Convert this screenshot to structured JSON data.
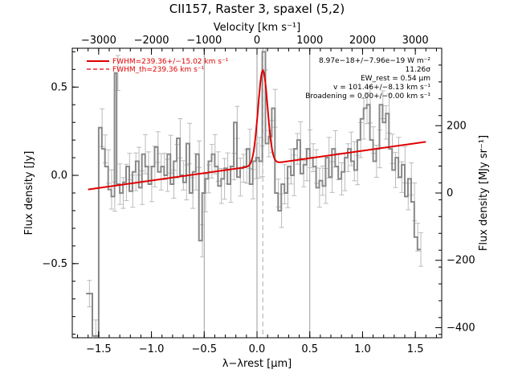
{
  "chart_data": {
    "type": "line",
    "title": "CII157, Raster 3, spaxel (5,2)",
    "xlabel": "λ−λrest [μm]",
    "ylabel": "Flux density [Jy]",
    "y2label": "Flux density [MJy sr⁻¹]",
    "top_xlabel": "Velocity [km s⁻¹]",
    "xlim": [
      -1.75,
      1.75
    ],
    "ylim": [
      -0.92,
      0.72
    ],
    "x_ticks": [
      -1.5,
      -1.0,
      -0.5,
      0.0,
      0.5,
      1.0,
      1.5
    ],
    "x_tick_labels": [
      "−1.5",
      "−1.0",
      "−0.5",
      "0.0",
      "0.5",
      "1.0",
      "1.5"
    ],
    "y_ticks": [
      -0.5,
      0.0,
      0.5
    ],
    "y_tick_labels": [
      "−0.5",
      "0.0",
      "0.5"
    ],
    "top_ticks_kms": [
      -3000,
      -2000,
      -1000,
      0,
      1000,
      2000,
      3000
    ],
    "top_tick_labels": [
      "−3000",
      "−2000",
      "−1000",
      "0",
      "1000",
      "2000",
      "3000"
    ],
    "right_ticks": [
      -400,
      -200,
      0,
      200
    ],
    "right_tick_labels": [
      "−400",
      "−200",
      "0",
      "200"
    ],
    "right_ylim": [
      -430,
      430
    ],
    "vlines_x": [
      -0.5,
      0.0,
      0.5
    ],
    "dashed_vline_x": 0.055,
    "spectrum": {
      "color": "#888888",
      "x": [
        -1.62,
        -1.56,
        -1.5,
        -1.47,
        -1.44,
        -1.41,
        -1.38,
        -1.35,
        -1.33,
        -1.3,
        -1.27,
        -1.24,
        -1.21,
        -1.18,
        -1.15,
        -1.12,
        -1.09,
        -1.06,
        -1.03,
        -1.0,
        -0.97,
        -0.94,
        -0.91,
        -0.88,
        -0.85,
        -0.82,
        -0.79,
        -0.76,
        -0.73,
        -0.7,
        -0.67,
        -0.64,
        -0.61,
        -0.58,
        -0.55,
        -0.52,
        -0.49,
        -0.46,
        -0.43,
        -0.4,
        -0.37,
        -0.34,
        -0.31,
        -0.28,
        -0.25,
        -0.22,
        -0.19,
        -0.16,
        -0.13,
        -0.1,
        -0.07,
        -0.04,
        -0.01,
        0.02,
        0.05,
        0.08,
        0.11,
        0.14,
        0.17,
        0.2,
        0.23,
        0.26,
        0.29,
        0.32,
        0.35,
        0.38,
        0.41,
        0.44,
        0.47,
        0.5,
        0.53,
        0.56,
        0.59,
        0.62,
        0.65,
        0.68,
        0.71,
        0.74,
        0.77,
        0.8,
        0.83,
        0.86,
        0.89,
        0.92,
        0.95,
        0.98,
        1.01,
        1.04,
        1.07,
        1.1,
        1.13,
        1.16,
        1.19,
        1.22,
        1.25,
        1.28,
        1.31,
        1.34,
        1.37,
        1.4,
        1.43,
        1.46,
        1.49,
        1.52
      ],
      "y": [
        -0.67,
        -0.91,
        0.27,
        0.15,
        0.05,
        -0.08,
        -0.12,
        0.58,
        -0.05,
        -0.1,
        -0.04,
        0.05,
        -0.09,
        0.02,
        0.08,
        -0.07,
        0.12,
        0.05,
        -0.05,
        0.05,
        0.16,
        0.02,
        0.05,
        0.0,
        0.12,
        -0.05,
        0.08,
        0.21,
        0.0,
        -0.04,
        0.18,
        -0.1,
        0.02,
        0.12,
        -0.37,
        -0.1,
        -0.02,
        0.08,
        0.12,
        0.05,
        -0.06,
        -0.02,
        0.04,
        -0.05,
        0.05,
        0.3,
        -0.01,
        0.04,
        0.05,
        0.15,
        -0.05,
        0.08,
        0.1,
        0.08,
        0.7,
        0.18,
        0.22,
        0.38,
        -0.1,
        -0.2,
        -0.05,
        -0.1,
        0.05,
        0.0,
        0.15,
        0.2,
        0.01,
        0.06,
        0.15,
        0.1,
        0.05,
        -0.07,
        -0.03,
        -0.06,
        0.1,
        -0.01,
        0.15,
        0.05,
        -0.02,
        0.02,
        0.1,
        0.15,
        0.08,
        0.03,
        0.2,
        0.32,
        0.38,
        0.4,
        0.2,
        0.08,
        0.15,
        0.4,
        0.3,
        0.35,
        0.15,
        0.03,
        0.1,
        -0.01,
        0.06,
        -0.12,
        -0.02,
        -0.15,
        -0.35,
        -0.42
      ]
    },
    "errorbar_color": "#bbbbbb",
    "errorbar_halfwidth": 0.065,
    "continuum": {
      "x_start": -1.6,
      "x_end": 1.6,
      "y_start": -0.08,
      "y_end": 0.19,
      "color": "#e00000"
    },
    "gauss_fit": {
      "center": 0.055,
      "amplitude": 0.535,
      "sigma": 0.045,
      "color": "#e00000"
    },
    "legend": [
      {
        "label": "FWHM=239.36+/−15.02 km s⁻¹",
        "style": "solid",
        "color": "#e00000"
      },
      {
        "label": "FWHM_th=239.36 km s⁻¹",
        "style": "dashed",
        "color": "#e00000"
      }
    ],
    "annotations": [
      "8.97e−18+/−7.96e−19 W m⁻²",
      "11.26σ",
      "EW_rest = 0.54 μm",
      "v = 101.46+/−8.13 km s⁻¹",
      "Broadening = 0.00+/−0.00 km s⁻¹"
    ]
  }
}
